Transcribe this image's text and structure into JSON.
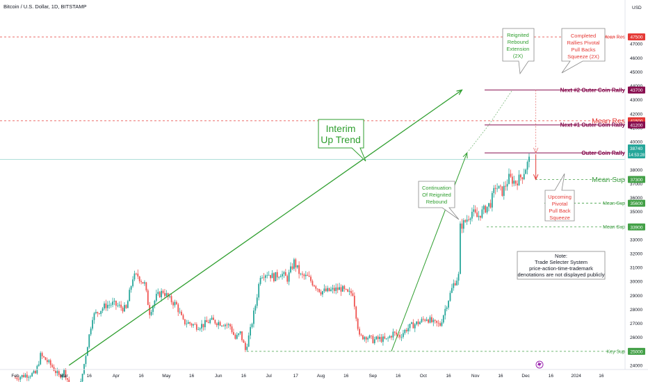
{
  "header": {
    "title": "Bitcoin / U.S. Dollar, 1D, BITSTAMP",
    "currency": "USD",
    "current_price": "38740",
    "countdown": "14:53:28"
  },
  "y_axis": {
    "ticks": [
      47000,
      46000,
      45000,
      44000,
      43000,
      42000,
      41000,
      40000,
      39000,
      38000,
      37000,
      36000,
      35000,
      34000,
      33000,
      32000,
      31000,
      30000,
      29000,
      28000,
      27000,
      26000,
      25000,
      24000
    ],
    "range": [
      23700,
      48700
    ]
  },
  "x_axis": {
    "ticks": [
      {
        "label": "Feb",
        "d": 0
      },
      {
        "label": "Mar",
        "d": 29
      },
      {
        "label": "16",
        "d": 44
      },
      {
        "label": "Apr",
        "d": 60
      },
      {
        "label": "16",
        "d": 75
      },
      {
        "label": "May",
        "d": 90
      },
      {
        "label": "16",
        "d": 105
      },
      {
        "label": "Jun",
        "d": 121
      },
      {
        "label": "16",
        "d": 136
      },
      {
        "label": "Jul",
        "d": 151
      },
      {
        "label": "17",
        "d": 167
      },
      {
        "label": "Aug",
        "d": 182
      },
      {
        "label": "16",
        "d": 197
      },
      {
        "label": "Sep",
        "d": 213
      },
      {
        "label": "16",
        "d": 228
      },
      {
        "label": "Oct",
        "d": 243
      },
      {
        "label": "16",
        "d": 258
      },
      {
        "label": "Nov",
        "d": 274
      },
      {
        "label": "16",
        "d": 289
      },
      {
        "label": "Dec",
        "d": 304
      },
      {
        "label": "16",
        "d": 319
      },
      {
        "label": "2024",
        "d": 334
      },
      {
        "label": "16",
        "d": 349
      }
    ]
  },
  "levels": [
    {
      "name": "Mean Res",
      "value": 47500,
      "tag": "47500",
      "color": "#e53935",
      "style": "dashed",
      "size": "small"
    },
    {
      "name": "Next #2 Outer Coin Rally",
      "value": 43700,
      "tag": "43700",
      "color": "#880e4f",
      "style": "solid",
      "size": "medium"
    },
    {
      "name": "Mean Res",
      "value": 41500,
      "tag": "41500",
      "color": "#e53935",
      "style": "dashed",
      "size": "large"
    },
    {
      "name": "Next #1 Outer Coin Rally",
      "value": 41200,
      "tag": "41200",
      "color": "#880e4f",
      "style": "solid",
      "size": "medium"
    },
    {
      "name": "Outer Coin Rally",
      "value": 39200,
      "tag": "39200",
      "color": "#880e4f",
      "style": "solid",
      "size": "medium"
    },
    {
      "name": "Mean Sup",
      "value": 37300,
      "tag": "37300",
      "color": "#43a047",
      "style": "dashed",
      "size": "large"
    },
    {
      "name": "Mean Sup",
      "value": 35600,
      "tag": "35600",
      "color": "#43a047",
      "style": "dashed",
      "size": "small"
    },
    {
      "name": "Mean Sup",
      "value": 33900,
      "tag": "33900",
      "color": "#43a047",
      "style": "dashed",
      "size": "small"
    },
    {
      "name": "Key Sup",
      "value": 25000,
      "tag": "25000",
      "color": "#43a047",
      "style": "dashed",
      "size": "small"
    }
  ],
  "callouts": {
    "interim": [
      "Interim",
      "Up Trend"
    ],
    "continuation": [
      "Continuation",
      "Of  Reignited",
      "Rebound"
    ],
    "reignited": [
      "Reignited",
      "Rebound",
      "Extension",
      "(2X)"
    ],
    "completed": [
      "Completed",
      "Rallies Pivotal",
      "Pull Backs",
      "Squeeze (2X)"
    ],
    "upcoming": [
      "Upcoming",
      "Pivotal",
      "Pull Back",
      "Squeeze"
    ],
    "note": [
      "Note:",
      "Trade Selecter System",
      "price-action-time-trademark",
      "denotations are not displayed publicly"
    ]
  },
  "colors": {
    "up": "#26a69a",
    "down": "#ef5350",
    "trend": "#2e9e2e",
    "rally": "#880e4f",
    "resistance": "#e53935",
    "support": "#43a047",
    "price": "#26a69a"
  },
  "chart_data": {
    "type": "candlestick",
    "title": "Bitcoin / U.S. Dollar, 1D, BITSTAMP",
    "x_unit": "days since Feb 1, 2023",
    "ylim": [
      23700,
      48700
    ],
    "last_price": 38740,
    "price_path": [
      [
        0,
        23100
      ],
      [
        6,
        23300
      ],
      [
        12,
        23400
      ],
      [
        15,
        24700
      ],
      [
        18,
        24400
      ],
      [
        22,
        23900
      ],
      [
        26,
        23200
      ],
      [
        29,
        23600
      ],
      [
        33,
        22400
      ],
      [
        38,
        22000
      ],
      [
        42,
        24800
      ],
      [
        46,
        27500
      ],
      [
        50,
        27900
      ],
      [
        54,
        28300
      ],
      [
        58,
        28400
      ],
      [
        62,
        28200
      ],
      [
        66,
        28000
      ],
      [
        70,
        30300
      ],
      [
        73,
        30400
      ],
      [
        77,
        29800
      ],
      [
        80,
        27800
      ],
      [
        84,
        28900
      ],
      [
        88,
        29300
      ],
      [
        92,
        28700
      ],
      [
        96,
        28300
      ],
      [
        100,
        27100
      ],
      [
        104,
        27000
      ],
      [
        108,
        26800
      ],
      [
        112,
        26900
      ],
      [
        116,
        27200
      ],
      [
        120,
        27100
      ],
      [
        124,
        27000
      ],
      [
        128,
        26800
      ],
      [
        131,
        25900
      ],
      [
        134,
        26300
      ],
      [
        137,
        25100
      ],
      [
        140,
        26500
      ],
      [
        143,
        28300
      ],
      [
        146,
        30500
      ],
      [
        150,
        30600
      ],
      [
        154,
        30300
      ],
      [
        158,
        30600
      ],
      [
        162,
        30200
      ],
      [
        166,
        31400
      ],
      [
        170,
        30400
      ],
      [
        174,
        30300
      ],
      [
        178,
        29800
      ],
      [
        182,
        29300
      ],
      [
        186,
        29300
      ],
      [
        190,
        29400
      ],
      [
        194,
        29500
      ],
      [
        198,
        29100
      ],
      [
        201,
        29200
      ],
      [
        205,
        26000
      ],
      [
        209,
        26100
      ],
      [
        213,
        25800
      ],
      [
        217,
        25900
      ],
      [
        221,
        25800
      ],
      [
        225,
        26300
      ],
      [
        229,
        26100
      ],
      [
        233,
        26600
      ],
      [
        237,
        26900
      ],
      [
        241,
        27100
      ],
      [
        245,
        27400
      ],
      [
        249,
        27000
      ],
      [
        253,
        26900
      ],
      [
        257,
        28400
      ],
      [
        261,
        29800
      ],
      [
        264,
        30400
      ],
      [
        265,
        33900
      ],
      [
        268,
        34300
      ],
      [
        272,
        35000
      ],
      [
        275,
        34600
      ],
      [
        279,
        35100
      ],
      [
        283,
        35600
      ],
      [
        286,
        36800
      ],
      [
        290,
        36400
      ],
      [
        294,
        37400
      ],
      [
        298,
        37100
      ],
      [
        302,
        37600
      ],
      [
        306,
        38700
      ]
    ],
    "trend_lines": [
      {
        "label": "Interim Up Trend",
        "from": [
          32,
          24000
        ],
        "to": [
          266,
          43700
        ]
      },
      {
        "label": "Continuation Of Reignited Rebound",
        "from": [
          224,
          25000
        ],
        "to": [
          269,
          39200
        ]
      }
    ],
    "projections": [
      {
        "label": "Reignited Rebound Extension (2X)",
        "from": [
          269,
          39200
        ],
        "via": [
          282,
          41200
        ],
        "to": [
          296,
          43700
        ]
      },
      {
        "label": "Completed Rallies Pivotal Pull Backs Squeeze (2X)",
        "at": 310,
        "from": 43700,
        "to": 39200
      },
      {
        "label": "Upcoming Pivotal Pull Back Squeeze",
        "at": 310,
        "from": 39200,
        "to": 37300
      }
    ],
    "horizontal_levels": [
      47500,
      43700,
      41500,
      41200,
      39200,
      37300,
      35600,
      33900,
      25000
    ]
  }
}
